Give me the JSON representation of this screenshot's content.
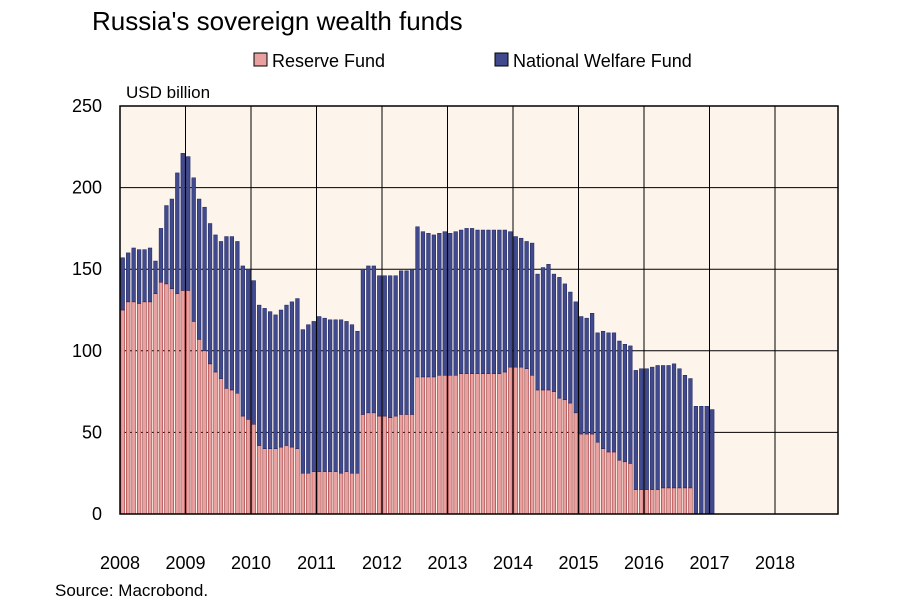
{
  "chart_data": {
    "type": "bar",
    "stacked": true,
    "title": "Russia's sovereign wealth funds",
    "ylabel": "USD billion",
    "xlabel": "",
    "ylim": [
      0,
      250
    ],
    "yticks": [
      0,
      50,
      100,
      150,
      200,
      250
    ],
    "x_tick_labels": [
      "2008",
      "2009",
      "2010",
      "2011",
      "2012",
      "2013",
      "2014",
      "2015",
      "2016",
      "2017",
      "2018"
    ],
    "grid": true,
    "legend_position": "top",
    "source": "Source: Macrobond.",
    "months_per_year": 12,
    "series": [
      {
        "name": "Reserve Fund",
        "color": "#e8a0a0",
        "values": [
          125,
          130,
          130,
          129,
          130,
          130,
          135,
          142,
          141,
          138,
          135,
          137,
          137,
          118,
          107,
          100,
          92,
          87,
          83,
          77,
          76,
          74,
          60,
          58,
          55,
          42,
          40,
          40,
          40,
          41,
          42,
          41,
          40,
          25,
          25,
          26,
          26,
          26,
          26,
          26,
          25,
          26,
          25,
          25,
          61,
          62,
          62,
          60,
          60,
          59,
          60,
          61,
          61,
          61,
          84,
          84,
          84,
          84,
          85,
          85,
          85,
          85,
          86,
          86,
          86,
          86,
          86,
          86,
          86,
          86,
          87,
          90,
          90,
          90,
          89,
          85,
          76,
          76,
          76,
          75,
          71,
          70,
          68,
          62,
          49,
          49,
          49,
          44,
          40,
          38,
          38,
          33,
          32,
          31,
          15,
          15,
          15,
          15,
          15,
          16,
          16,
          16,
          16,
          16,
          16,
          0,
          0,
          0,
          0
        ]
      },
      {
        "name": "National Welfare Fund",
        "color": "#404a8c",
        "values": [
          32,
          30,
          33,
          33,
          32,
          33,
          20,
          33,
          48,
          55,
          74,
          84,
          82,
          88,
          86,
          88,
          86,
          84,
          84,
          93,
          94,
          93,
          92,
          92,
          88,
          86,
          86,
          84,
          82,
          84,
          86,
          89,
          92,
          88,
          91,
          92,
          95,
          94,
          93,
          93,
          94,
          92,
          91,
          87,
          89,
          90,
          90,
          86,
          86,
          87,
          86,
          88,
          88,
          89,
          92,
          89,
          88,
          87,
          87,
          88,
          87,
          88,
          88,
          89,
          89,
          88,
          88,
          88,
          88,
          88,
          87,
          83,
          80,
          79,
          78,
          81,
          71,
          75,
          77,
          72,
          74,
          71,
          68,
          68,
          72,
          71,
          74,
          67,
          72,
          73,
          73,
          73,
          72,
          72,
          73,
          74,
          74,
          75,
          76,
          75,
          75,
          76,
          73,
          69,
          67,
          66,
          66,
          66,
          64
        ]
      }
    ]
  }
}
